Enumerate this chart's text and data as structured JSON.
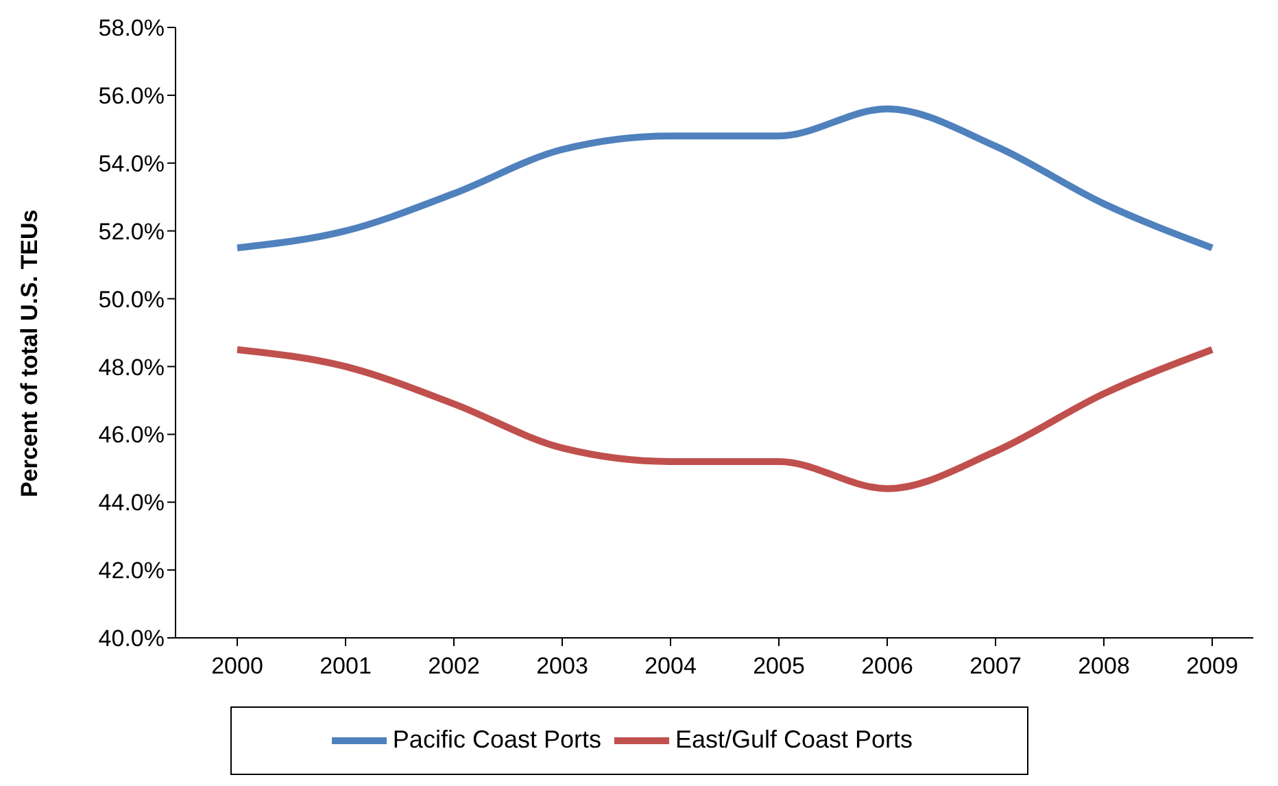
{
  "chart_data": {
    "type": "line",
    "ylabel": "Percent of total U.S. TEUs",
    "categories": [
      "2000",
      "2001",
      "2002",
      "2003",
      "2004",
      "2005",
      "2006",
      "2007",
      "2008",
      "2009"
    ],
    "series": [
      {
        "name": "Pacific Coast Ports",
        "color": "#4f81bd",
        "values": [
          51.5,
          52.0,
          53.1,
          54.4,
          54.8,
          54.8,
          55.6,
          54.5,
          52.8,
          51.5
        ]
      },
      {
        "name": "East/Gulf Coast Ports",
        "color": "#c0504d",
        "values": [
          48.5,
          48.0,
          46.9,
          45.6,
          45.2,
          45.2,
          44.4,
          45.5,
          47.2,
          48.5
        ]
      }
    ],
    "ylim": [
      40,
      58
    ],
    "yticks": [
      {
        "value": 40,
        "label": "40.0%"
      },
      {
        "value": 42,
        "label": "42.0%"
      },
      {
        "value": 44,
        "label": "44.0%"
      },
      {
        "value": 46,
        "label": "46.0%"
      },
      {
        "value": 48,
        "label": "48.0%"
      },
      {
        "value": 50,
        "label": "50.0%"
      },
      {
        "value": 52,
        "label": "52.0%"
      },
      {
        "value": 54,
        "label": "54.0%"
      },
      {
        "value": 56,
        "label": "56.0%"
      },
      {
        "value": 58,
        "label": "58.0%"
      }
    ],
    "grid": false,
    "legend": "bottom",
    "marker": "none",
    "line_style": "solid"
  }
}
